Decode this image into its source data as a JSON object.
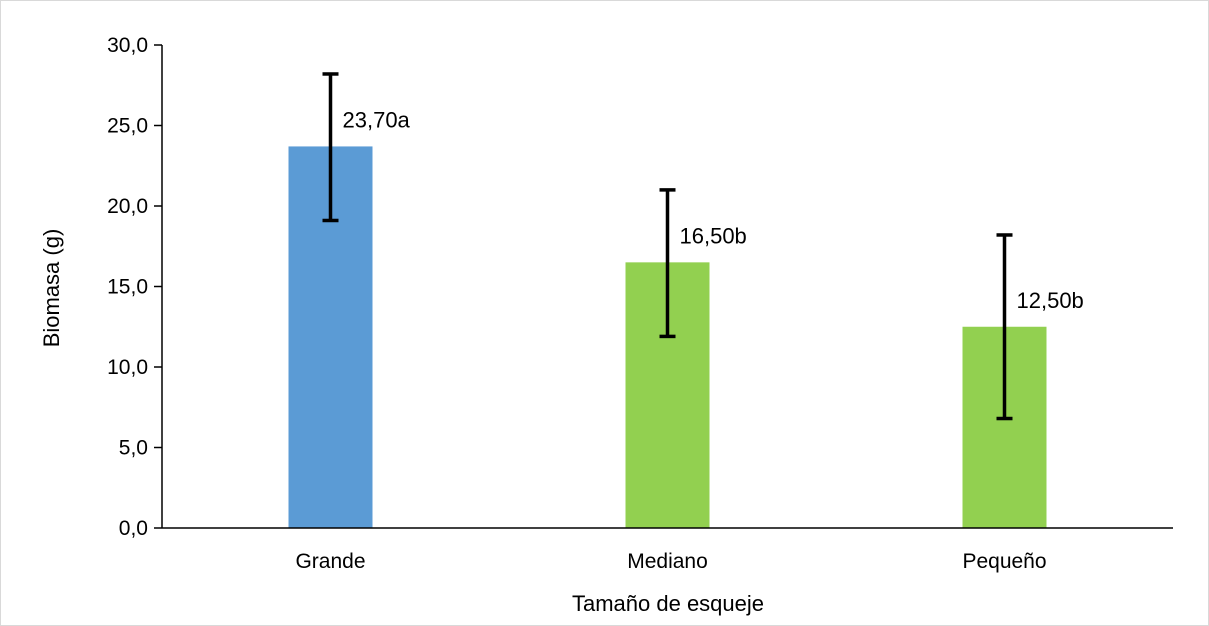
{
  "chart_data": {
    "type": "bar",
    "title": "",
    "xlabel": "Tamaño de esqueje",
    "ylabel": "Biomasa (g)",
    "categories": [
      "Grande",
      "Mediano",
      "Pequeño"
    ],
    "values": [
      23.7,
      16.5,
      12.5
    ],
    "error_low": [
      19.1,
      11.9,
      6.8
    ],
    "error_high": [
      28.2,
      21.0,
      18.2
    ],
    "data_labels": [
      "23,70a",
      "16,50b",
      "12,50b"
    ],
    "bar_colors": [
      "#5b9bd5",
      "#92d050",
      "#92d050"
    ],
    "ylim": [
      0,
      30
    ],
    "yticks": [
      0,
      5,
      10,
      15,
      20,
      25,
      30
    ],
    "ytick_labels": [
      "0,0",
      "5,0",
      "10,0",
      "15,0",
      "20,0",
      "25,0",
      "30,0"
    ],
    "grid": false,
    "legend": "none"
  }
}
